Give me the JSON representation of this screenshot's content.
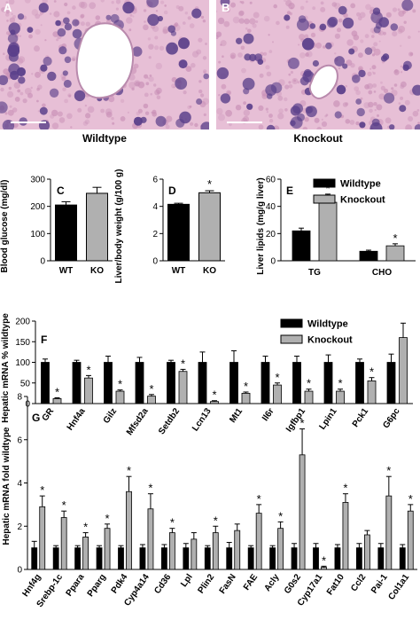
{
  "micrographs": [
    {
      "letter": "A",
      "caption": "Wildtype"
    },
    {
      "letter": "B",
      "caption": "Knockout"
    }
  ],
  "colors": {
    "wildtype": "#000000",
    "knockout": "#b0b0b0",
    "tissue_light": "#e7bfd6",
    "tissue_dark": "#3a2a70",
    "nucleus": "#5a3f8a",
    "vessel_lumen": "#ffffff"
  },
  "legend": {
    "wildtype": "Wildtype",
    "knockout": "Knockout"
  },
  "chart_data": [
    {
      "panel": "C",
      "type": "bar",
      "ylabel": "Blood glucose (mg/dl)",
      "ylim": [
        0,
        300
      ],
      "yticks": [
        0,
        100,
        200,
        300
      ],
      "categories": [
        "WT",
        "KO"
      ],
      "values": [
        205,
        248
      ],
      "errors": [
        12,
        22
      ],
      "significant": [
        false,
        false
      ]
    },
    {
      "panel": "D",
      "type": "bar",
      "ylabel": "Liver/body weight (g/100 g)",
      "ylim": [
        0,
        6
      ],
      "yticks": [
        0,
        2,
        4,
        6
      ],
      "categories": [
        "WT",
        "KO"
      ],
      "values": [
        4.15,
        5.0
      ],
      "errors": [
        0.08,
        0.15
      ],
      "significant": [
        false,
        true
      ]
    },
    {
      "panel": "E",
      "type": "bar",
      "ylabel": "Liver lipids (mg/g liver)",
      "ylim": [
        0,
        60
      ],
      "yticks": [
        0,
        20,
        40,
        60
      ],
      "categories": [
        "TG",
        "CHO"
      ],
      "series": [
        {
          "name": "Wildtype",
          "values": [
            22,
            7
          ],
          "errors": [
            2,
            0.8
          ],
          "significant": [
            false,
            false
          ]
        },
        {
          "name": "Knockout",
          "values": [
            43,
            11
          ],
          "errors": [
            6,
            1.5
          ],
          "significant": [
            true,
            true
          ]
        }
      ]
    },
    {
      "panel": "F",
      "type": "bar",
      "ylabel": "Hepatic mRNA % wildtype",
      "ylim": [
        0,
        200
      ],
      "yticks": [
        0,
        50,
        100,
        150,
        200
      ],
      "categories": [
        "GR",
        "Hnf4a",
        "Gilz",
        "Mfsd2a",
        "Setdb2",
        "Lcn13",
        "Mt1",
        "Il6r",
        "Igfbp1",
        "Lpin1",
        "Pck1",
        "G6pc"
      ],
      "series": [
        {
          "name": "Wildtype",
          "values": [
            100,
            100,
            100,
            100,
            100,
            100,
            100,
            100,
            100,
            100,
            100,
            100
          ],
          "errors": [
            8,
            5,
            15,
            12,
            5,
            25,
            28,
            15,
            15,
            18,
            8,
            20
          ]
        },
        {
          "name": "Knockout",
          "values": [
            12,
            62,
            30,
            18,
            78,
            5,
            25,
            45,
            30,
            30,
            55,
            160
          ],
          "errors": [
            2,
            6,
            3,
            4,
            5,
            2,
            3,
            5,
            5,
            5,
            8,
            35
          ],
          "significant": [
            true,
            true,
            true,
            true,
            true,
            true,
            true,
            true,
            true,
            true,
            true,
            false
          ]
        }
      ]
    },
    {
      "panel": "G",
      "type": "bar",
      "ylabel": "Hepatic mRNA fold wildtype",
      "ylim": [
        0,
        8
      ],
      "yticks": [
        0,
        2,
        4,
        6,
        8
      ],
      "categories": [
        "Hnf4g",
        "Srebp-1c",
        "Ppara",
        "Pparg",
        "Pdk4",
        "Cyp4a14",
        "Cd36",
        "Lpl",
        "Plin2",
        "FasN",
        "FAE",
        "Acly",
        "G0s2",
        "Cyp17a1",
        "Fat10",
        "Ccl2",
        "Pai-1",
        "Col1a1"
      ],
      "series": [
        {
          "name": "Wildtype",
          "values": [
            1,
            1,
            1,
            1,
            1,
            1,
            1,
            1,
            1,
            1,
            1,
            1,
            1,
            1,
            1,
            1,
            1,
            1
          ],
          "errors": [
            0.3,
            0.1,
            0.1,
            0.1,
            0.1,
            0.15,
            0.15,
            0.2,
            0.1,
            0.25,
            0.1,
            0.1,
            0.2,
            0.2,
            0.15,
            0.2,
            0.2,
            0.15
          ]
        },
        {
          "name": "Knockout",
          "values": [
            2.9,
            2.4,
            1.5,
            1.9,
            3.6,
            2.8,
            1.7,
            1.4,
            1.7,
            1.8,
            2.6,
            1.9,
            5.3,
            0.1,
            3.1,
            1.6,
            3.4,
            2.7
          ],
          "errors": [
            0.5,
            0.3,
            0.2,
            0.2,
            0.7,
            0.7,
            0.2,
            0.3,
            0.3,
            0.3,
            0.4,
            0.3,
            1.2,
            0.05,
            0.4,
            0.2,
            0.9,
            0.3
          ],
          "significant": [
            true,
            true,
            true,
            true,
            true,
            true,
            true,
            false,
            true,
            false,
            true,
            true,
            true,
            true,
            true,
            false,
            true,
            true
          ]
        }
      ]
    }
  ]
}
